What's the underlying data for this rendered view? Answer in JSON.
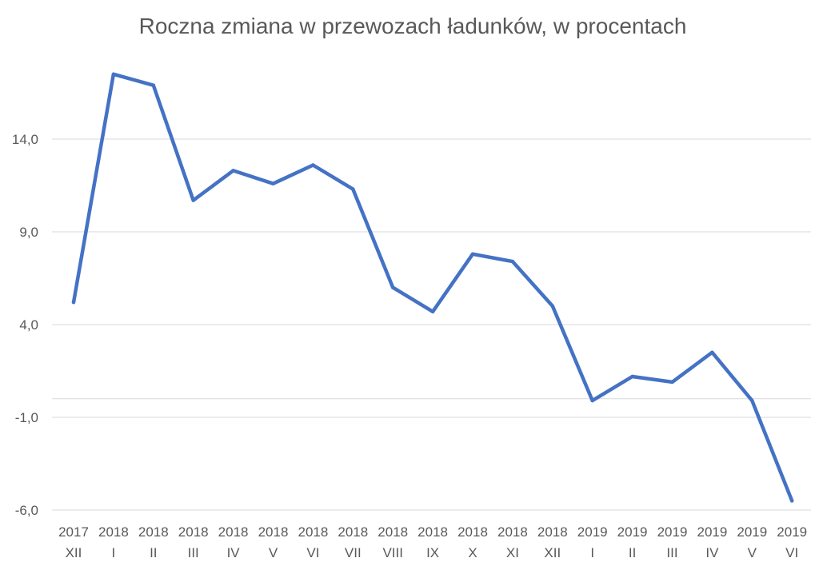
{
  "chart_data": {
    "type": "line",
    "title": "Roczna zmiana w przewozach ładunków, w procentach",
    "xlabel": "",
    "ylabel": "",
    "categories": [
      {
        "year": "2017",
        "month": "XII"
      },
      {
        "year": "2018",
        "month": "I"
      },
      {
        "year": "2018",
        "month": "II"
      },
      {
        "year": "2018",
        "month": "III"
      },
      {
        "year": "2018",
        "month": "IV"
      },
      {
        "year": "2018",
        "month": "V"
      },
      {
        "year": "2018",
        "month": "VI"
      },
      {
        "year": "2018",
        "month": "VII"
      },
      {
        "year": "2018",
        "month": "VIII"
      },
      {
        "year": "2018",
        "month": "IX"
      },
      {
        "year": "2018",
        "month": "X"
      },
      {
        "year": "2018",
        "month": "XI"
      },
      {
        "year": "2018",
        "month": "XII"
      },
      {
        "year": "2019",
        "month": "I"
      },
      {
        "year": "2019",
        "month": "II"
      },
      {
        "year": "2019",
        "month": "III"
      },
      {
        "year": "2019",
        "month": "IV"
      },
      {
        "year": "2019",
        "month": "V"
      },
      {
        "year": "2019",
        "month": "VI"
      }
    ],
    "series": [
      {
        "values": [
          5.2,
          17.5,
          16.9,
          10.7,
          12.3,
          11.6,
          12.6,
          11.3,
          6.0,
          4.7,
          7.8,
          7.4,
          5.0,
          -0.1,
          1.2,
          0.9,
          2.5,
          -0.1,
          -5.5
        ],
        "color": "#4472c4"
      }
    ],
    "ylim": [
      -6,
      19
    ],
    "yticks": [
      {
        "value": -6,
        "label": "-6,0"
      },
      {
        "value": -1,
        "label": "-1,0"
      },
      {
        "value": 4,
        "label": "4,0"
      },
      {
        "value": 9,
        "label": "9,0"
      },
      {
        "value": 14,
        "label": "14,0"
      }
    ],
    "grid": true,
    "legend": "none"
  }
}
